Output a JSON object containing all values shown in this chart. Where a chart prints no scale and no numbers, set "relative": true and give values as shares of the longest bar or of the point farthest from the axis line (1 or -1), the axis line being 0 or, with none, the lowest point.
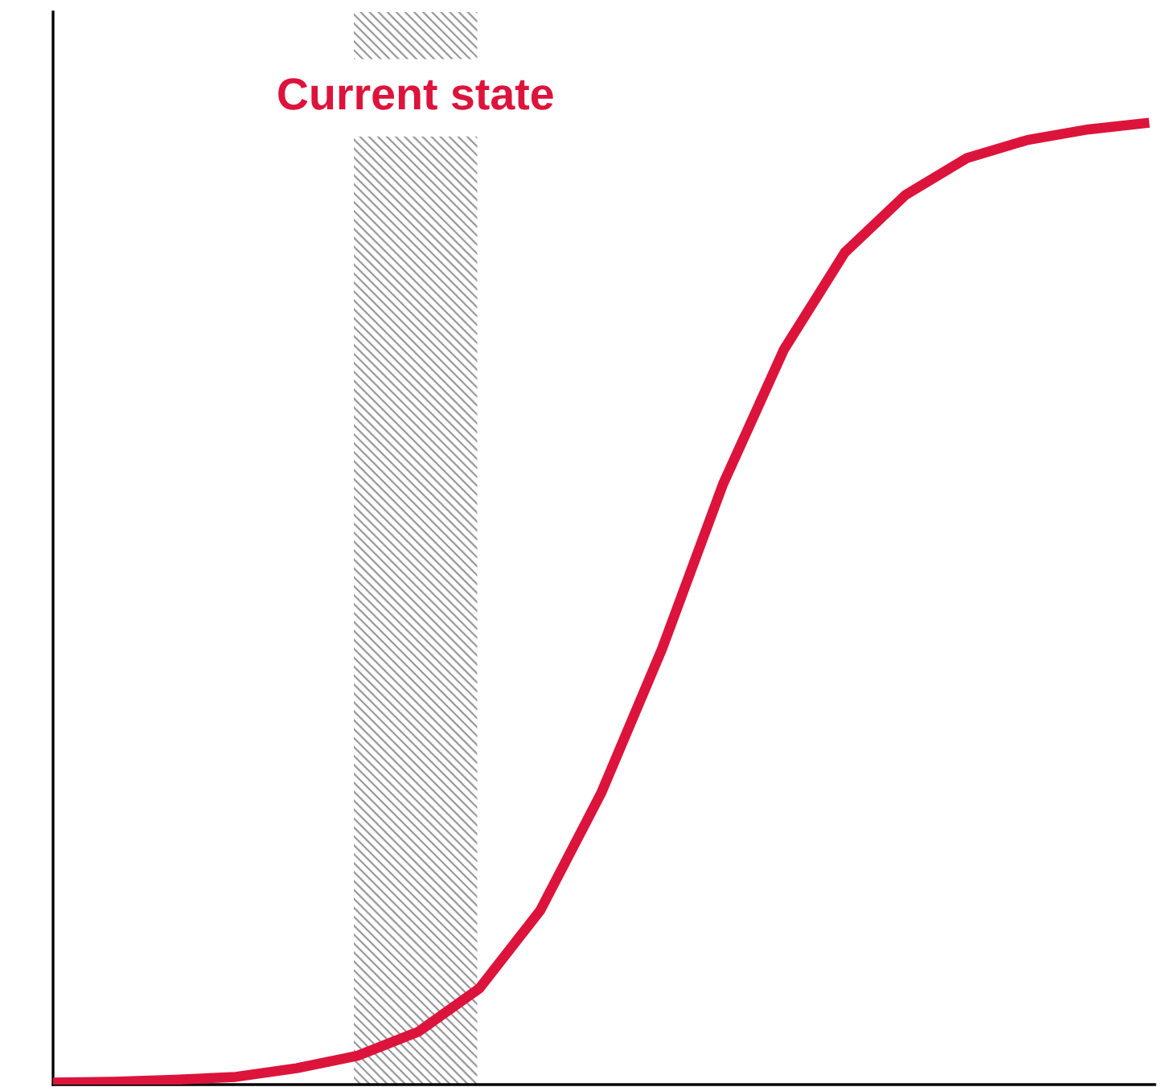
{
  "chart_data": {
    "type": "line",
    "relative": true,
    "legend": false,
    "marker": "none",
    "line_style": "solid",
    "categories": [
      null,
      null,
      null,
      null,
      null,
      null,
      null,
      null,
      null,
      null,
      null,
      null,
      null,
      null,
      null,
      null,
      null,
      null,
      null
    ],
    "series": [
      {
        "color": "#dc143c",
        "values": [
          0.002,
          0.003,
          0.005,
          0.008,
          0.017,
          0.03,
          0.055,
          0.1,
          0.181,
          0.303,
          0.453,
          0.624,
          0.764,
          0.865,
          0.925,
          0.963,
          0.982,
          0.993,
          1.0
        ]
      }
    ],
    "annotations": [
      "Current state"
    ]
  }
}
